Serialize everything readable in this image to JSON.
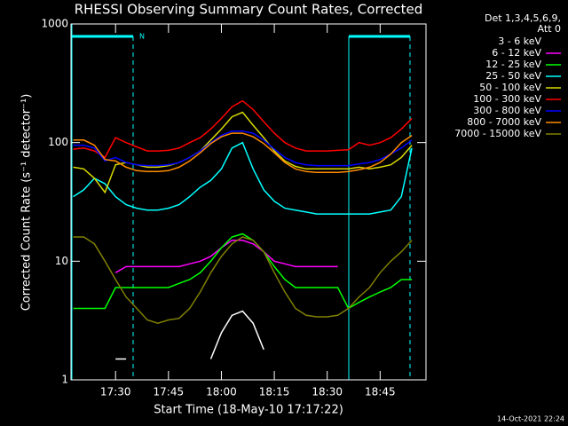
{
  "chart_data": {
    "type": "line",
    "title": "RHESSI Observing Summary Count Rates, Corrected",
    "xlabel": "Start Time (18-May-10 17:17:22)",
    "ylabel": "Corrected Count Rate (s⁻¹ detector⁻¹)",
    "legend_title": [
      "Det 1,3,4,5,6,9,",
      "Att 0"
    ],
    "annotation": "N",
    "footer": "14-Oct-2021 22:24",
    "log_y": true,
    "legend": "right",
    "xlim": [
      1037.37,
      1138
    ],
    "xticks": [
      {
        "value": 1050,
        "label": "17:30"
      },
      {
        "value": 1065,
        "label": "17:45"
      },
      {
        "value": 1080,
        "label": "18:00"
      },
      {
        "value": 1095,
        "label": "18:15"
      },
      {
        "value": 1110,
        "label": "18:30"
      },
      {
        "value": 1125,
        "label": "18:45"
      }
    ],
    "ylim": [
      1,
      1000
    ],
    "yticks": [
      1,
      10,
      100,
      1000
    ],
    "x": [
      1038,
      1041,
      1044,
      1047,
      1050,
      1053,
      1056,
      1059,
      1062,
      1065,
      1068,
      1071,
      1074,
      1077,
      1080,
      1083,
      1086,
      1089,
      1092,
      1095,
      1098,
      1101,
      1104,
      1107,
      1110,
      1113,
      1116,
      1119,
      1122,
      1125,
      1128,
      1131,
      1134,
      1137
    ],
    "series": [
      {
        "name": "3 - 6 keV",
        "color": "#ffffff",
        "legend_color": "#000000",
        "values": [
          null,
          null,
          null,
          null,
          1.5,
          1.5,
          null,
          null,
          null,
          null,
          null,
          null,
          null,
          1.5,
          2.5,
          3.5,
          3.8,
          3,
          1.8,
          null,
          null,
          null,
          null,
          null,
          null,
          null,
          null,
          null,
          null,
          null,
          null,
          null,
          null,
          null
        ]
      },
      {
        "name": "6 - 12 keV",
        "color": "#ff00ff",
        "values": [
          null,
          null,
          null,
          null,
          8,
          9,
          9,
          9,
          9,
          9,
          9,
          9.5,
          10,
          11,
          13,
          15,
          15,
          14,
          12,
          10,
          9.5,
          9,
          9,
          9,
          9,
          9,
          null,
          null,
          null,
          null,
          null,
          null,
          null,
          null
        ]
      },
      {
        "name": "12 - 25 keV",
        "color": "#00ff00",
        "values": [
          4,
          4,
          4,
          4,
          6,
          6,
          6,
          6,
          6,
          6,
          6.5,
          7,
          8,
          10,
          13,
          16,
          17,
          15,
          12,
          9,
          7,
          6,
          6,
          6,
          6,
          6,
          4,
          4.5,
          5,
          5.5,
          6,
          7,
          7,
          null
        ]
      },
      {
        "name": "25 - 50 keV",
        "color": "#00ffff",
        "values": [
          35,
          40,
          50,
          45,
          35,
          30,
          28,
          27,
          27,
          28,
          30,
          35,
          42,
          48,
          60,
          90,
          100,
          60,
          40,
          32,
          28,
          27,
          26,
          25,
          25,
          25,
          25,
          25,
          25,
          26,
          27,
          35,
          90,
          null
        ]
      },
      {
        "name": "50 - 100 keV",
        "color": "#d8d800",
        "values": [
          62,
          60,
          50,
          38,
          65,
          68,
          65,
          62,
          62,
          64,
          68,
          75,
          85,
          105,
          130,
          165,
          180,
          140,
          110,
          85,
          70,
          63,
          60,
          60,
          60,
          60,
          60,
          62,
          60,
          62,
          65,
          75,
          95,
          null
        ]
      },
      {
        "name": "100 - 300 keV",
        "color": "#ff0000",
        "values": [
          88,
          90,
          85,
          75,
          110,
          100,
          92,
          85,
          85,
          86,
          90,
          100,
          110,
          130,
          160,
          200,
          225,
          190,
          150,
          120,
          100,
          90,
          85,
          85,
          85,
          86,
          87,
          100,
          95,
          100,
          110,
          130,
          160,
          null
        ]
      },
      {
        "name": "300 - 800 keV",
        "color": "#0000ff",
        "values": [
          95,
          95,
          90,
          70,
          75,
          68,
          65,
          64,
          64,
          65,
          68,
          75,
          85,
          100,
          115,
          125,
          125,
          120,
          105,
          88,
          75,
          68,
          65,
          64,
          64,
          64,
          64,
          66,
          68,
          72,
          80,
          90,
          105,
          null
        ]
      },
      {
        "name": "800 - 7000 keV",
        "color": "#ff8c00",
        "values": [
          105,
          105,
          95,
          72,
          70,
          62,
          58,
          57,
          57,
          58,
          62,
          70,
          82,
          98,
          112,
          120,
          120,
          112,
          98,
          82,
          68,
          60,
          57,
          56,
          56,
          56,
          57,
          59,
          62,
          68,
          80,
          100,
          115,
          null
        ]
      },
      {
        "name": "7000 - 15000 keV",
        "color": "#808000",
        "values": [
          16,
          16,
          14,
          10,
          7,
          5,
          4,
          3.2,
          3,
          3.2,
          3.3,
          4,
          5.5,
          8,
          11,
          14,
          16,
          15,
          12,
          8,
          5.5,
          4,
          3.5,
          3.4,
          3.4,
          3.5,
          4,
          5,
          6,
          8,
          10,
          12,
          15,
          null
        ]
      }
    ]
  }
}
